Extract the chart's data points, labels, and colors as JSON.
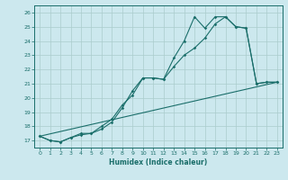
{
  "xlabel": "Humidex (Indice chaleur)",
  "bg_color": "#cce8ee",
  "grid_color": "#aacccc",
  "line_color": "#1a6e6a",
  "xlim": [
    -0.5,
    23.5
  ],
  "ylim": [
    16.5,
    26.5
  ],
  "xticks": [
    0,
    1,
    2,
    3,
    4,
    5,
    6,
    7,
    8,
    9,
    10,
    11,
    12,
    13,
    14,
    15,
    16,
    17,
    18,
    19,
    20,
    21,
    22,
    23
  ],
  "yticks": [
    17,
    18,
    19,
    20,
    21,
    22,
    23,
    24,
    25,
    26
  ],
  "series1_x": [
    0,
    1,
    2,
    3,
    4,
    5,
    6,
    7,
    8,
    9,
    10,
    11,
    12,
    13,
    14,
    15,
    16,
    17,
    18,
    19,
    20,
    21,
    22,
    23
  ],
  "series1_y": [
    17.3,
    17.0,
    16.9,
    17.2,
    17.4,
    17.5,
    17.8,
    18.3,
    19.3,
    20.5,
    21.4,
    21.4,
    21.3,
    22.8,
    24.0,
    25.7,
    24.9,
    25.7,
    25.7,
    25.0,
    24.9,
    21.0,
    21.1,
    21.1
  ],
  "series2_x": [
    0,
    1,
    2,
    3,
    4,
    5,
    6,
    7,
    8,
    9,
    10,
    11,
    12,
    13,
    14,
    15,
    16,
    17,
    18,
    19,
    20,
    21,
    22,
    23
  ],
  "series2_y": [
    17.3,
    17.0,
    16.9,
    17.2,
    17.5,
    17.5,
    18.0,
    18.5,
    19.5,
    20.2,
    21.4,
    21.4,
    21.3,
    22.2,
    23.0,
    23.5,
    24.2,
    25.2,
    25.7,
    25.0,
    24.9,
    21.0,
    21.1,
    21.1
  ],
  "series3_x": [
    0,
    23
  ],
  "series3_y": [
    17.3,
    21.1
  ],
  "tick_fontsize": 4.5,
  "xlabel_fontsize": 5.5
}
